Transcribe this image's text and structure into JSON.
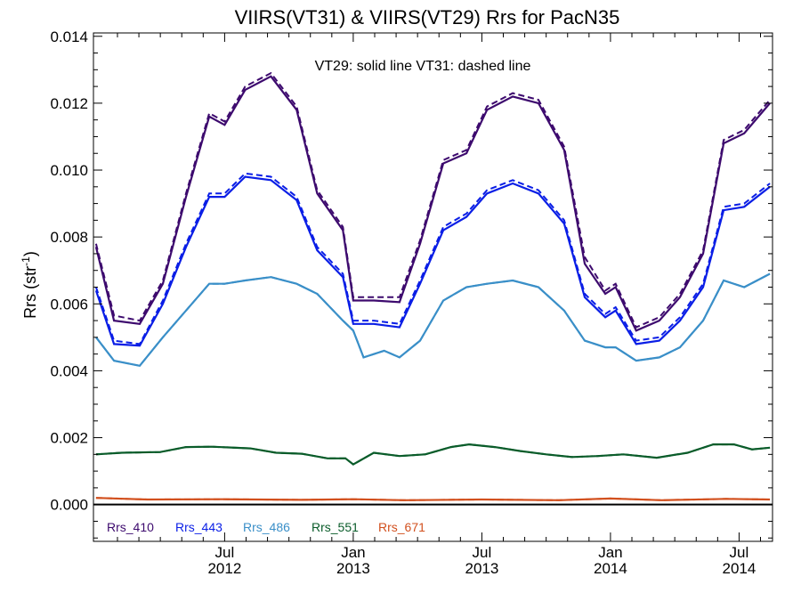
{
  "chart_data": {
    "type": "line",
    "title": "VIIRS(VT31) & VIIRS(VT29)  Rrs for PacN35",
    "xlabel": "",
    "ylabel": "Rrs (str",
    "ylabel_sup": "-1",
    "ylabel_close": ")",
    "annotation": "VT29: solid line   VT31: dashed line",
    "ylim": [
      -0.0011,
      0.0141
    ],
    "y_ticks": [
      "0.000",
      "0.002",
      "0.004",
      "0.006",
      "0.008",
      "0.010",
      "0.012",
      "0.014"
    ],
    "x_ticks": [
      {
        "month": "Jul",
        "year": "2012",
        "x": 2012.5
      },
      {
        "month": "Jan",
        "year": "2013",
        "x": 2013.0
      },
      {
        "month": "Jul",
        "year": "2013",
        "x": 2013.5
      },
      {
        "month": "Jan",
        "year": "2014",
        "x": 2014.0
      },
      {
        "month": "Jul",
        "year": "2014",
        "x": 2014.5
      }
    ],
    "xlim": [
      2011.99,
      2014.63
    ],
    "grid": false,
    "legend_position": "bottom-left",
    "series": [
      {
        "name": "Rrs_410",
        "color": "#3d0a6e",
        "solid": [
          [
            2012.0,
            0.0077
          ],
          [
            2012.07,
            0.0055
          ],
          [
            2012.17,
            0.0054
          ],
          [
            2012.26,
            0.0066
          ],
          [
            2012.35,
            0.0092
          ],
          [
            2012.44,
            0.0116
          ],
          [
            2012.5,
            0.01135
          ],
          [
            2012.58,
            0.0124
          ],
          [
            2012.68,
            0.0128
          ],
          [
            2012.78,
            0.0118
          ],
          [
            2012.86,
            0.0093
          ],
          [
            2012.96,
            0.0082
          ],
          [
            2013.0,
            0.0061
          ],
          [
            2013.08,
            0.0061
          ],
          [
            2013.18,
            0.00605
          ],
          [
            2013.26,
            0.0078
          ],
          [
            2013.35,
            0.0102
          ],
          [
            2013.44,
            0.0105
          ],
          [
            2013.52,
            0.0118
          ],
          [
            2013.62,
            0.0122
          ],
          [
            2013.72,
            0.012
          ],
          [
            2013.82,
            0.0106
          ],
          [
            2013.9,
            0.0072
          ],
          [
            2013.98,
            0.0063
          ],
          [
            2014.02,
            0.0065
          ],
          [
            2014.1,
            0.0052
          ],
          [
            2014.19,
            0.0055
          ],
          [
            2014.27,
            0.0062
          ],
          [
            2014.36,
            0.0075
          ],
          [
            2014.44,
            0.0108
          ],
          [
            2014.52,
            0.0111
          ],
          [
            2014.62,
            0.012
          ]
        ],
        "dashed": [
          [
            2012.0,
            0.0078
          ],
          [
            2012.07,
            0.00565
          ],
          [
            2012.17,
            0.0055
          ],
          [
            2012.26,
            0.0067
          ],
          [
            2012.35,
            0.0093
          ],
          [
            2012.44,
            0.0117
          ],
          [
            2012.5,
            0.01145
          ],
          [
            2012.58,
            0.0125
          ],
          [
            2012.68,
            0.0129
          ],
          [
            2012.78,
            0.0119
          ],
          [
            2012.86,
            0.0094
          ],
          [
            2012.96,
            0.0083
          ],
          [
            2013.0,
            0.0062
          ],
          [
            2013.08,
            0.0062
          ],
          [
            2013.18,
            0.0062
          ],
          [
            2013.26,
            0.0079
          ],
          [
            2013.35,
            0.0103
          ],
          [
            2013.44,
            0.0106
          ],
          [
            2013.52,
            0.0119
          ],
          [
            2013.62,
            0.0123
          ],
          [
            2013.72,
            0.0121
          ],
          [
            2013.82,
            0.0107
          ],
          [
            2013.9,
            0.0074
          ],
          [
            2013.98,
            0.0064
          ],
          [
            2014.02,
            0.0066
          ],
          [
            2014.1,
            0.0053
          ],
          [
            2014.19,
            0.0056
          ],
          [
            2014.27,
            0.0063
          ],
          [
            2014.36,
            0.0076
          ],
          [
            2014.44,
            0.0109
          ],
          [
            2014.52,
            0.0112
          ],
          [
            2014.62,
            0.0121
          ]
        ]
      },
      {
        "name": "Rrs_443",
        "color": "#0a1ee6",
        "solid": [
          [
            2012.0,
            0.0064
          ],
          [
            2012.07,
            0.0048
          ],
          [
            2012.17,
            0.00475
          ],
          [
            2012.26,
            0.006
          ],
          [
            2012.35,
            0.0077
          ],
          [
            2012.44,
            0.0092
          ],
          [
            2012.5,
            0.0092
          ],
          [
            2012.58,
            0.0098
          ],
          [
            2012.68,
            0.0097
          ],
          [
            2012.78,
            0.0091
          ],
          [
            2012.86,
            0.0076
          ],
          [
            2012.96,
            0.0068
          ],
          [
            2013.0,
            0.0054
          ],
          [
            2013.08,
            0.0054
          ],
          [
            2013.18,
            0.0053
          ],
          [
            2013.26,
            0.0066
          ],
          [
            2013.35,
            0.0082
          ],
          [
            2013.44,
            0.0086
          ],
          [
            2013.52,
            0.0093
          ],
          [
            2013.62,
            0.0096
          ],
          [
            2013.72,
            0.0093
          ],
          [
            2013.82,
            0.0084
          ],
          [
            2013.9,
            0.0062
          ],
          [
            2013.98,
            0.0056
          ],
          [
            2014.02,
            0.0058
          ],
          [
            2014.1,
            0.0048
          ],
          [
            2014.19,
            0.0049
          ],
          [
            2014.27,
            0.0055
          ],
          [
            2014.36,
            0.0065
          ],
          [
            2014.44,
            0.0088
          ],
          [
            2014.52,
            0.0089
          ],
          [
            2014.62,
            0.0095
          ]
        ],
        "dashed": [
          [
            2012.0,
            0.0065
          ],
          [
            2012.07,
            0.0049
          ],
          [
            2012.17,
            0.0048
          ],
          [
            2012.26,
            0.0061
          ],
          [
            2012.35,
            0.0078
          ],
          [
            2012.44,
            0.0093
          ],
          [
            2012.5,
            0.0093
          ],
          [
            2012.58,
            0.0099
          ],
          [
            2012.68,
            0.0098
          ],
          [
            2012.78,
            0.0092
          ],
          [
            2012.86,
            0.0077
          ],
          [
            2012.96,
            0.0069
          ],
          [
            2013.0,
            0.0055
          ],
          [
            2013.08,
            0.0055
          ],
          [
            2013.18,
            0.0054
          ],
          [
            2013.26,
            0.0067
          ],
          [
            2013.35,
            0.0083
          ],
          [
            2013.44,
            0.0087
          ],
          [
            2013.52,
            0.0094
          ],
          [
            2013.62,
            0.0097
          ],
          [
            2013.72,
            0.0094
          ],
          [
            2013.82,
            0.0085
          ],
          [
            2013.9,
            0.0063
          ],
          [
            2013.98,
            0.0057
          ],
          [
            2014.02,
            0.0059
          ],
          [
            2014.1,
            0.0049
          ],
          [
            2014.19,
            0.005
          ],
          [
            2014.27,
            0.0056
          ],
          [
            2014.36,
            0.0066
          ],
          [
            2014.44,
            0.0089
          ],
          [
            2014.52,
            0.009
          ],
          [
            2014.62,
            0.0096
          ]
        ]
      },
      {
        "name": "Rrs_486",
        "color": "#3a8fc8",
        "solid": [
          [
            2012.0,
            0.005
          ],
          [
            2012.07,
            0.0043
          ],
          [
            2012.17,
            0.00415
          ],
          [
            2012.26,
            0.005
          ],
          [
            2012.35,
            0.0058
          ],
          [
            2012.44,
            0.0066
          ],
          [
            2012.5,
            0.0066
          ],
          [
            2012.58,
            0.0067
          ],
          [
            2012.68,
            0.0068
          ],
          [
            2012.78,
            0.0066
          ],
          [
            2012.86,
            0.0063
          ],
          [
            2012.96,
            0.0055
          ],
          [
            2013.0,
            0.0052
          ],
          [
            2013.04,
            0.0044
          ],
          [
            2013.12,
            0.0046
          ],
          [
            2013.18,
            0.0044
          ],
          [
            2013.26,
            0.0049
          ],
          [
            2013.35,
            0.0061
          ],
          [
            2013.44,
            0.0065
          ],
          [
            2013.52,
            0.0066
          ],
          [
            2013.62,
            0.0067
          ],
          [
            2013.72,
            0.0065
          ],
          [
            2013.82,
            0.0058
          ],
          [
            2013.9,
            0.0049
          ],
          [
            2013.98,
            0.0047
          ],
          [
            2014.02,
            0.0047
          ],
          [
            2014.1,
            0.0043
          ],
          [
            2014.19,
            0.0044
          ],
          [
            2014.27,
            0.0047
          ],
          [
            2014.36,
            0.0055
          ],
          [
            2014.44,
            0.0067
          ],
          [
            2014.52,
            0.0065
          ],
          [
            2014.62,
            0.0069
          ]
        ],
        "dashed": [
          [
            2012.0,
            0.005
          ],
          [
            2012.07,
            0.0043
          ],
          [
            2012.17,
            0.00415
          ],
          [
            2012.26,
            0.005
          ],
          [
            2012.35,
            0.0058
          ],
          [
            2012.44,
            0.0066
          ],
          [
            2012.5,
            0.0066
          ],
          [
            2012.58,
            0.0067
          ],
          [
            2012.68,
            0.0068
          ],
          [
            2012.78,
            0.0066
          ],
          [
            2012.86,
            0.0063
          ],
          [
            2012.96,
            0.0055
          ],
          [
            2013.0,
            0.0052
          ],
          [
            2013.04,
            0.0044
          ],
          [
            2013.12,
            0.0046
          ],
          [
            2013.18,
            0.0044
          ],
          [
            2013.26,
            0.0049
          ],
          [
            2013.35,
            0.0061
          ],
          [
            2013.44,
            0.0065
          ],
          [
            2013.52,
            0.0066
          ],
          [
            2013.62,
            0.0067
          ],
          [
            2013.72,
            0.0065
          ],
          [
            2013.82,
            0.0058
          ],
          [
            2013.9,
            0.0049
          ],
          [
            2013.98,
            0.0047
          ],
          [
            2014.02,
            0.0047
          ],
          [
            2014.1,
            0.0043
          ],
          [
            2014.19,
            0.0044
          ],
          [
            2014.27,
            0.0047
          ],
          [
            2014.36,
            0.0055
          ],
          [
            2014.44,
            0.0067
          ],
          [
            2014.52,
            0.0065
          ],
          [
            2014.62,
            0.0069
          ]
        ]
      },
      {
        "name": "Rrs_551",
        "color": "#0a5c2a",
        "solid": [
          [
            2012.0,
            0.0015
          ],
          [
            2012.1,
            0.00155
          ],
          [
            2012.25,
            0.00157
          ],
          [
            2012.35,
            0.00172
          ],
          [
            2012.45,
            0.00173
          ],
          [
            2012.6,
            0.00168
          ],
          [
            2012.7,
            0.00155
          ],
          [
            2012.8,
            0.00152
          ],
          [
            2012.9,
            0.00138
          ],
          [
            2012.97,
            0.00138
          ],
          [
            2013.0,
            0.0012
          ],
          [
            2013.08,
            0.00155
          ],
          [
            2013.18,
            0.00145
          ],
          [
            2013.28,
            0.0015
          ],
          [
            2013.38,
            0.00172
          ],
          [
            2013.45,
            0.0018
          ],
          [
            2013.55,
            0.00172
          ],
          [
            2013.65,
            0.0016
          ],
          [
            2013.75,
            0.0015
          ],
          [
            2013.85,
            0.00142
          ],
          [
            2013.95,
            0.00145
          ],
          [
            2014.05,
            0.0015
          ],
          [
            2014.18,
            0.0014
          ],
          [
            2014.3,
            0.00155
          ],
          [
            2014.4,
            0.0018
          ],
          [
            2014.48,
            0.0018
          ],
          [
            2014.55,
            0.00165
          ],
          [
            2014.62,
            0.0017
          ]
        ],
        "dashed": [
          [
            2012.0,
            0.0015
          ],
          [
            2012.1,
            0.00155
          ],
          [
            2012.25,
            0.00157
          ],
          [
            2012.35,
            0.00172
          ],
          [
            2012.45,
            0.00173
          ],
          [
            2012.6,
            0.00168
          ],
          [
            2012.7,
            0.00155
          ],
          [
            2012.8,
            0.00152
          ],
          [
            2012.9,
            0.00138
          ],
          [
            2012.97,
            0.00138
          ],
          [
            2013.0,
            0.0012
          ],
          [
            2013.08,
            0.00155
          ],
          [
            2013.18,
            0.00145
          ],
          [
            2013.28,
            0.0015
          ],
          [
            2013.38,
            0.00172
          ],
          [
            2013.45,
            0.0018
          ],
          [
            2013.55,
            0.00172
          ],
          [
            2013.65,
            0.0016
          ],
          [
            2013.75,
            0.0015
          ],
          [
            2013.85,
            0.00142
          ],
          [
            2013.95,
            0.00145
          ],
          [
            2014.05,
            0.0015
          ],
          [
            2014.18,
            0.0014
          ],
          [
            2014.3,
            0.00155
          ],
          [
            2014.4,
            0.0018
          ],
          [
            2014.48,
            0.0018
          ],
          [
            2014.55,
            0.00165
          ],
          [
            2014.62,
            0.0017
          ]
        ]
      },
      {
        "name": "Rrs_671",
        "color": "#d2501e",
        "solid": [
          [
            2012.0,
            0.0002
          ],
          [
            2012.2,
            0.00015
          ],
          [
            2012.5,
            0.00016
          ],
          [
            2012.8,
            0.00014
          ],
          [
            2013.0,
            0.00016
          ],
          [
            2013.2,
            0.00013
          ],
          [
            2013.5,
            0.00015
          ],
          [
            2013.8,
            0.00013
          ],
          [
            2014.0,
            0.00018
          ],
          [
            2014.2,
            0.00013
          ],
          [
            2014.45,
            0.00017
          ],
          [
            2014.62,
            0.00015
          ]
        ],
        "dashed": [
          [
            2012.0,
            0.0002
          ],
          [
            2012.2,
            0.00015
          ],
          [
            2012.5,
            0.00016
          ],
          [
            2012.8,
            0.00014
          ],
          [
            2013.0,
            0.00016
          ],
          [
            2013.2,
            0.00013
          ],
          [
            2013.5,
            0.00015
          ],
          [
            2013.8,
            0.00013
          ],
          [
            2014.0,
            0.00018
          ],
          [
            2014.2,
            0.00013
          ],
          [
            2014.45,
            0.00017
          ],
          [
            2014.62,
            0.00015
          ]
        ]
      }
    ]
  }
}
